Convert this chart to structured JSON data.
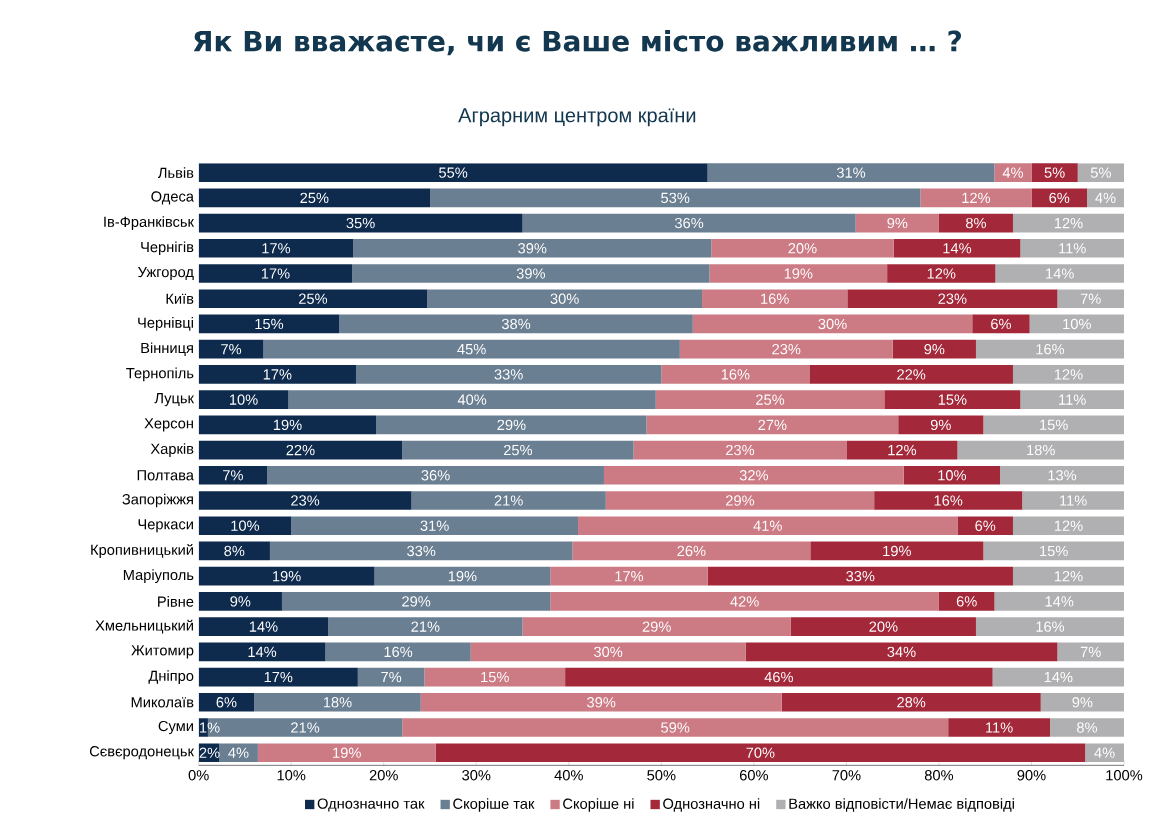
{
  "chart_data": {
    "type": "bar",
    "orientation": "horizontal",
    "stacked": true,
    "title": "Як Ви вважаєте, чи є Ваше місто важливим … ?",
    "subtitle": "Аграрним центром країни",
    "categories": [
      "Львів",
      "Одеса",
      "Ів-Франківськ",
      "Чернігів",
      "Ужгород",
      "Київ",
      "Чернівці",
      "Вінниця",
      "Тернопіль",
      "Луцьк",
      "Херсон",
      "Харків",
      "Полтава",
      "Запоріжжя",
      "Черкаси",
      "Кропивницький",
      "Маріуполь",
      "Рівне",
      "Хмельницький",
      "Житомир",
      "Дніпро",
      "Миколаїв",
      "Суми",
      "Сєвєродонецьк"
    ],
    "series": [
      {
        "name": "Однозначно так",
        "color": "#0e2a4d",
        "values": [
          55,
          25,
          35,
          16.7,
          16.6,
          24.7,
          15.2,
          7,
          17,
          9.7,
          19.2,
          22,
          7.4,
          23,
          10,
          7.7,
          19,
          9,
          14,
          13.7,
          17.2,
          6,
          1,
          2.2
        ],
        "value_labels": [
          "55%",
          "25%",
          "35%",
          "17%",
          "17%",
          "25%",
          "15%",
          "7%",
          "17%",
          "10%",
          "19%",
          "22%",
          "7%",
          "23%",
          "10%",
          "8%",
          "19%",
          "9%",
          "14%",
          "14%",
          "17%",
          "6%",
          "1%",
          "2%"
        ]
      },
      {
        "name": "Скоріше так",
        "color": "#6b7f92",
        "values": [
          31,
          53,
          36,
          38.7,
          38.6,
          29.7,
          38.2,
          45,
          33,
          39.7,
          29.2,
          25,
          36.4,
          21,
          31,
          32.7,
          19,
          29,
          21,
          15.7,
          7.2,
          18,
          21,
          4.2
        ],
        "value_labels": [
          "31%",
          "53%",
          "36%",
          "39%",
          "39%",
          "30%",
          "38%",
          "45%",
          "33%",
          "40%",
          "29%",
          "25%",
          "36%",
          "21%",
          "31%",
          "33%",
          "19%",
          "29%",
          "21%",
          "16%",
          "7%",
          "18%",
          "21%",
          "4%"
        ]
      },
      {
        "name": "Скоріше ні",
        "color": "#cc7b85",
        "values": [
          4,
          12,
          9,
          19.7,
          19.2,
          15.7,
          30.2,
          23,
          16,
          24.7,
          27.2,
          23,
          32.4,
          29,
          41,
          25.7,
          17,
          42,
          29,
          29.7,
          15.2,
          39,
          59,
          19.2
        ],
        "value_labels": [
          "4%",
          "12%",
          "9%",
          "20%",
          "19%",
          "16%",
          "30%",
          "23%",
          "16%",
          "25%",
          "27%",
          "23%",
          "32%",
          "29%",
          "41%",
          "26%",
          "17%",
          "42%",
          "29%",
          "30%",
          "15%",
          "39%",
          "59%",
          "19%"
        ]
      },
      {
        "name": "Однозначно ні",
        "color": "#a3283a",
        "values": [
          5,
          6,
          8,
          13.7,
          11.7,
          22.7,
          6.2,
          9,
          22,
          14.7,
          9.2,
          12,
          10.4,
          16,
          6,
          18.7,
          33,
          6,
          20,
          33.7,
          46.2,
          28,
          11,
          70.2
        ],
        "value_labels": [
          "5%",
          "6%",
          "8%",
          "14%",
          "12%",
          "23%",
          "6%",
          "9%",
          "22%",
          "15%",
          "9%",
          "12%",
          "10%",
          "16%",
          "6%",
          "19%",
          "33%",
          "6%",
          "20%",
          "34%",
          "46%",
          "28%",
          "11%",
          "70%"
        ]
      },
      {
        "name": "Важко відповісти/Немає відповіді",
        "color": "#b0b0b2",
        "values": [
          5,
          4,
          12,
          11.2,
          13.9,
          7.2,
          10.2,
          16,
          12,
          11.2,
          15.2,
          18,
          13.4,
          11,
          12,
          15.2,
          12,
          14,
          16,
          7.2,
          14.2,
          9,
          8,
          4.2
        ],
        "value_labels": [
          "5%",
          "4%",
          "12%",
          "11%",
          "14%",
          "7%",
          "10%",
          "16%",
          "12%",
          "11%",
          "15%",
          "18%",
          "13%",
          "11%",
          "12%",
          "15%",
          "12%",
          "14%",
          "16%",
          "7%",
          "14%",
          "9%",
          "8%",
          "4%"
        ]
      }
    ],
    "xlim": [
      0,
      100
    ],
    "xticks": [
      {
        "value": 0,
        "label": "0%"
      },
      {
        "value": 10,
        "label": "10%"
      },
      {
        "value": 20,
        "label": "20%"
      },
      {
        "value": 30,
        "label": "30%"
      },
      {
        "value": 40,
        "label": "40%"
      },
      {
        "value": 50,
        "label": "50%"
      },
      {
        "value": 60,
        "label": "60%"
      },
      {
        "value": 70,
        "label": "70%"
      },
      {
        "value": 80,
        "label": "80%"
      },
      {
        "value": 90,
        "label": "90%"
      },
      {
        "value": 100,
        "label": "100%"
      }
    ],
    "legend": "bottom",
    "grid": false
  }
}
